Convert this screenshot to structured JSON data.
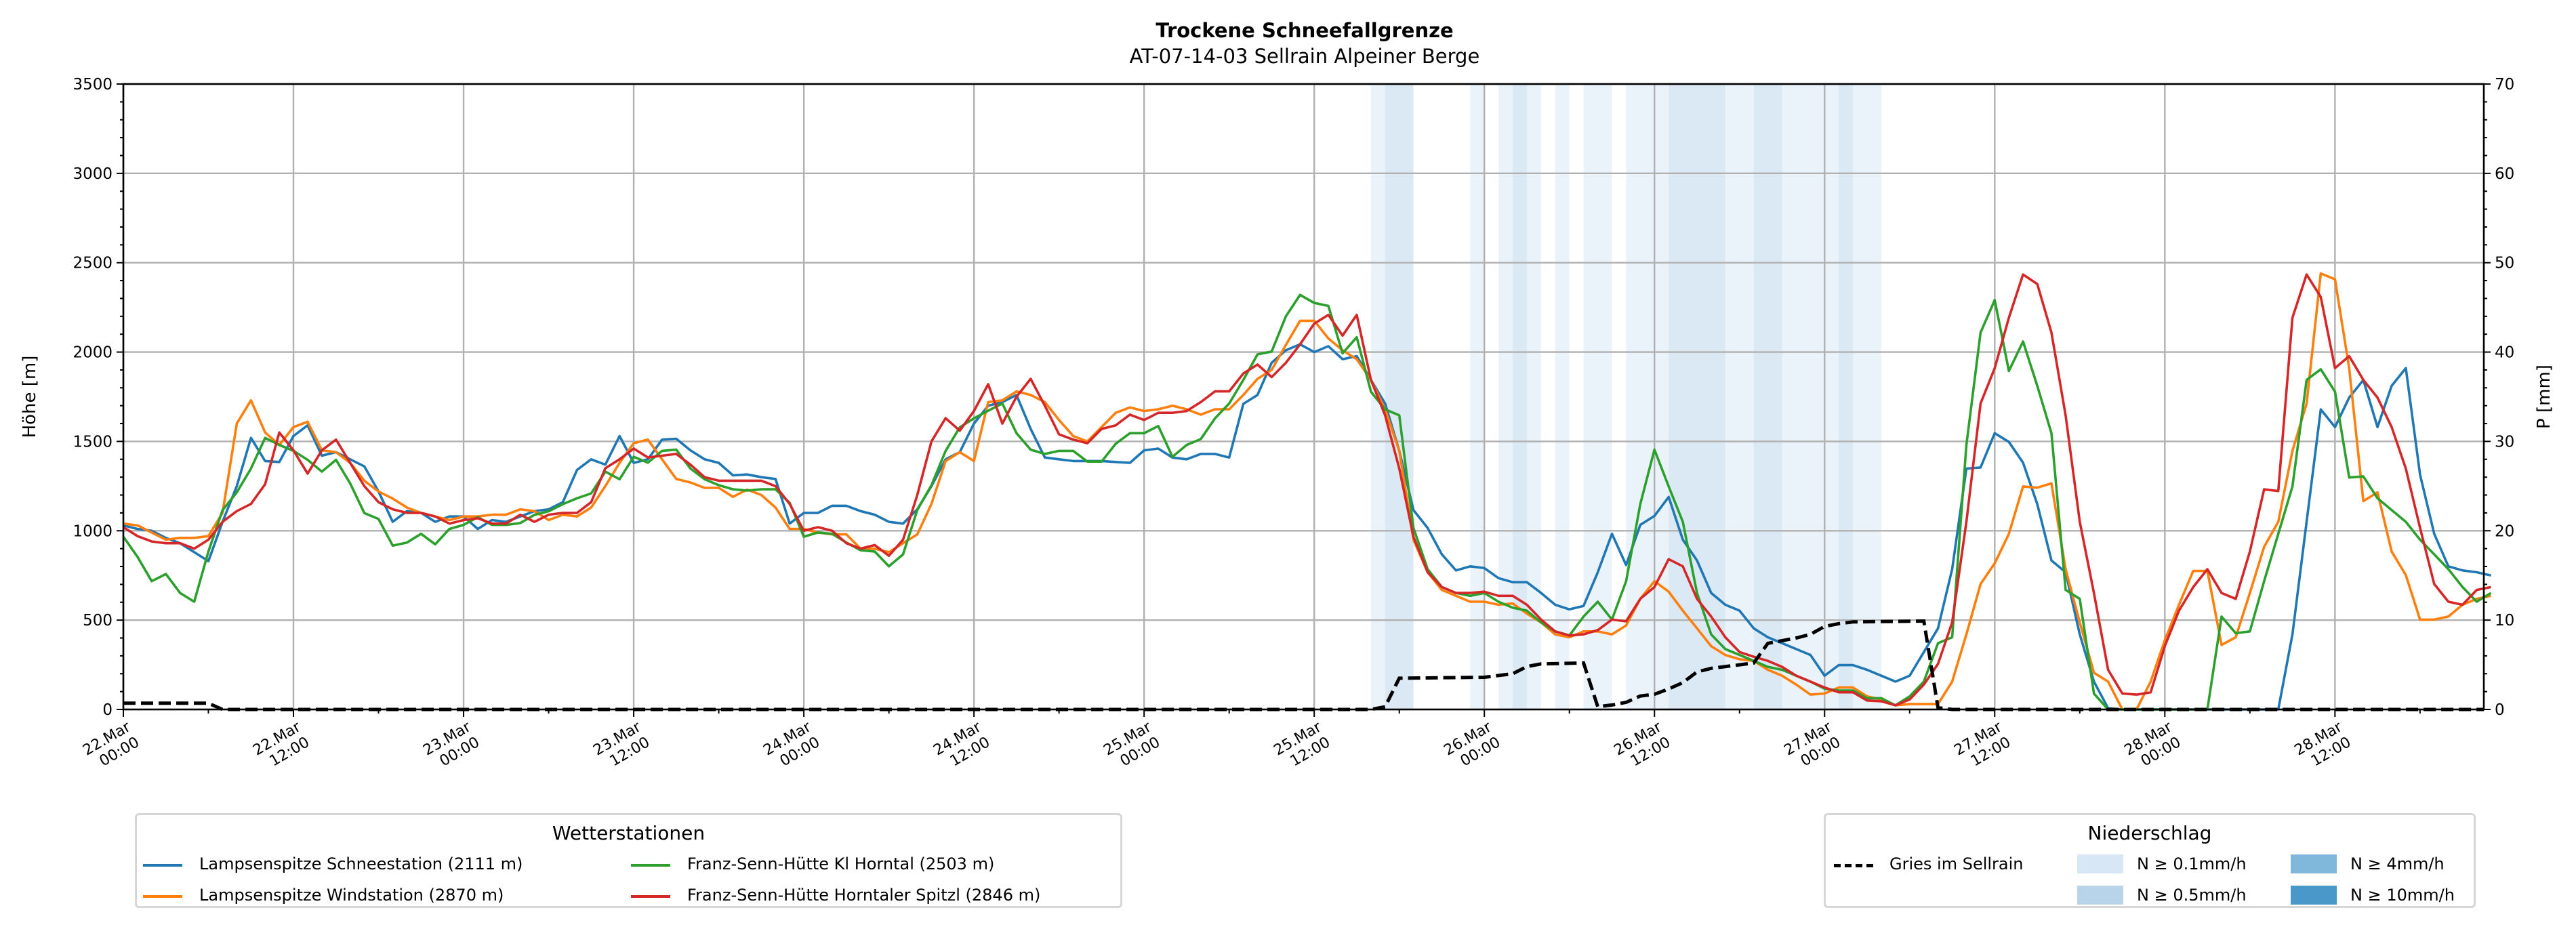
{
  "title": "Trockene Schneefallgrenze",
  "subtitle": "AT-07-14-03 Sellrain Alpeiner Berge",
  "chart_data": {
    "type": "line",
    "title": "Trockene Schneefallgrenze",
    "subtitle": "AT-07-14-03 Sellrain Alpeiner Berge",
    "x_start": "22.Mar 00:00",
    "x_step_hours": 1,
    "xlim_hours": [
      0,
      166.5
    ],
    "xticks": [
      "22.Mar\n00:00",
      "22.Mar\n12:00",
      "23.Mar\n00:00",
      "23.Mar\n12:00",
      "24.Mar\n00:00",
      "24.Mar\n12:00",
      "25.Mar\n00:00",
      "25.Mar\n12:00",
      "26.Mar\n00:00",
      "26.Mar\n12:00",
      "27.Mar\n00:00",
      "27.Mar\n12:00",
      "28.Mar\n00:00",
      "28.Mar\n12:00"
    ],
    "ylabel": "Höhe [m]",
    "ylim": [
      0,
      3500
    ],
    "yticks": [
      0,
      500,
      1000,
      1500,
      2000,
      2500,
      3000,
      3500
    ],
    "y2label": "P [mm]",
    "y2lim": [
      0,
      70
    ],
    "y2ticks": [
      0,
      10,
      20,
      30,
      40,
      50,
      60,
      70
    ],
    "grid": true,
    "series": [
      {
        "name": "Lampsenspitze Schneestation (2111 m)",
        "color": "#1f77b4",
        "values": [
          1030,
          1010,
          1000,
          960,
          930,
          880,
          830,
          1050,
          1250,
          1520,
          1390,
          1385,
          1530,
          1590,
          1420,
          1440,
          1400,
          1360,
          1220,
          1050,
          1110,
          1100,
          1050,
          1080,
          1080,
          1010,
          1060,
          1050,
          1080,
          1110,
          1120,
          1160,
          1340,
          1400,
          1370,
          1530,
          1380,
          1400,
          1510,
          1515,
          1450,
          1400,
          1380,
          1310,
          1315,
          1300,
          1290,
          1040,
          1100,
          1100,
          1140,
          1140,
          1110,
          1090,
          1050,
          1040,
          1120,
          1250,
          1400,
          1440,
          1600,
          1700,
          1720,
          1760,
          1570,
          1410,
          1400,
          1390,
          1390,
          1390,
          1385,
          1380,
          1450,
          1460,
          1410,
          1400,
          1430,
          1430,
          1410,
          1710,
          1760,
          1940,
          2010,
          2043,
          2000,
          2033,
          1960,
          1977,
          1844,
          1712,
          1447,
          1116,
          1016,
          868,
          778,
          801,
          791,
          735,
          712,
          712,
          652,
          586,
          560,
          579,
          768,
          983,
          808,
          1033,
          1083,
          1189,
          950,
          834,
          652,
          586,
          553,
          454,
          404,
          371,
          338,
          305,
          189,
          248,
          248,
          222,
          189,
          156,
          189,
          321,
          454,
          785,
          1348,
          1354,
          1546,
          1497,
          1381,
          1149,
          834,
          768,
          420,
          156,
          7,
          0,
          0,
          0,
          0,
          0,
          0,
          0,
          0,
          0,
          0,
          0,
          0,
          420,
          1050,
          1679,
          1580,
          1745,
          1844,
          1580,
          1811,
          1910,
          1314,
          983,
          801,
          778,
          768,
          750
        ]
      },
      {
        "name": "Lampsenspitze Windstation (2870 m)",
        "color": "#ff7f0e",
        "values": [
          1040,
          1030,
          990,
          950,
          960,
          960,
          970,
          1100,
          1600,
          1730,
          1550,
          1480,
          1580,
          1610,
          1450,
          1440,
          1380,
          1280,
          1220,
          1180,
          1130,
          1100,
          1080,
          1060,
          1080,
          1080,
          1090,
          1090,
          1120,
          1110,
          1060,
          1090,
          1080,
          1130,
          1250,
          1380,
          1490,
          1510,
          1400,
          1290,
          1270,
          1240,
          1240,
          1190,
          1230,
          1200,
          1130,
          1010,
          1010,
          990,
          980,
          980,
          900,
          900,
          880,
          930,
          980,
          1150,
          1390,
          1440,
          1390,
          1720,
          1730,
          1780,
          1760,
          1720,
          1620,
          1530,
          1500,
          1580,
          1660,
          1690,
          1670,
          1680,
          1700,
          1680,
          1650,
          1680,
          1680,
          1760,
          1850,
          1900,
          2040,
          2175,
          2175,
          2076,
          2010,
          1960,
          1844,
          1679,
          1447,
          950,
          768,
          669,
          636,
          603,
          603,
          586,
          593,
          536,
          487,
          420,
          404,
          437,
          437,
          420,
          470,
          619,
          718,
          659,
          553,
          454,
          354,
          305,
          281,
          272,
          222,
          189,
          139,
          83,
          89,
          123,
          123,
          73,
          56,
          23,
          30,
          30,
          30,
          156,
          420,
          702,
          818,
          983,
          1248,
          1241,
          1265,
          785,
          487,
          205,
          156,
          0,
          0,
          156,
          387,
          586,
          775,
          775,
          361,
          404,
          652,
          910,
          1050,
          1447,
          1712,
          2440,
          2407,
          1910,
          1166,
          1215,
          884,
          752,
          503,
          503,
          520,
          586,
          619,
          636
        ]
      },
      {
        "name": "Franz-Senn-Hütte Kl Horntal (2503 m)",
        "color": "#2ca02c",
        "values": [
          967,
          854,
          718,
          758,
          652,
          603,
          884,
          1116,
          1215,
          1348,
          1520,
          1480,
          1447,
          1397,
          1331,
          1397,
          1265,
          1099,
          1066,
          917,
          934,
          983,
          924,
          1010,
          1033,
          1076,
          1033,
          1033,
          1043,
          1089,
          1109,
          1149,
          1182,
          1209,
          1331,
          1288,
          1414,
          1381,
          1447,
          1454,
          1348,
          1288,
          1255,
          1232,
          1225,
          1232,
          1232,
          1156,
          967,
          990,
          983,
          934,
          891,
          884,
          801,
          868,
          1116,
          1255,
          1447,
          1579,
          1629,
          1672,
          1712,
          1546,
          1454,
          1430,
          1447,
          1447,
          1387,
          1387,
          1487,
          1546,
          1546,
          1586,
          1414,
          1480,
          1513,
          1629,
          1712,
          1844,
          1987,
          2003,
          2200,
          2320,
          2275,
          2258,
          1993,
          2083,
          1778,
          1679,
          1646,
          1016,
          785,
          685,
          652,
          636,
          652,
          603,
          569,
          553,
          487,
          437,
          414,
          520,
          603,
          503,
          718,
          1149,
          1454,
          1248,
          1050,
          652,
          420,
          338,
          305,
          272,
          238,
          222,
          189,
          156,
          116,
          106,
          106,
          63,
          63,
          23,
          73,
          156,
          371,
          404,
          1480,
          2109,
          2291,
          1894,
          2059,
          1811,
          1546,
          669,
          619,
          89,
          0,
          0,
          0,
          0,
          0,
          0,
          0,
          0,
          520,
          427,
          437,
          718,
          983,
          1248,
          1844,
          1904,
          1778,
          1298,
          1304,
          1182,
          1116,
          1050,
          950,
          868,
          785,
          685,
          603,
          652
        ]
      },
      {
        "name": "Franz-Senn-Hütte Horntaler Spitzl (2846 m)",
        "color": "#d62728",
        "values": [
          1020,
          970,
          940,
          930,
          930,
          900,
          950,
          1050,
          1110,
          1150,
          1260,
          1550,
          1450,
          1320,
          1450,
          1510,
          1380,
          1250,
          1160,
          1120,
          1100,
          1100,
          1080,
          1040,
          1060,
          1070,
          1040,
          1040,
          1090,
          1050,
          1090,
          1100,
          1100,
          1160,
          1350,
          1400,
          1460,
          1410,
          1420,
          1430,
          1370,
          1300,
          1280,
          1280,
          1280,
          1280,
          1250,
          1150,
          1000,
          1020,
          1000,
          930,
          900,
          920,
          860,
          950,
          1200,
          1500,
          1630,
          1560,
          1670,
          1820,
          1600,
          1750,
          1850,
          1700,
          1540,
          1510,
          1490,
          1570,
          1590,
          1650,
          1620,
          1660,
          1660,
          1670,
          1720,
          1780,
          1780,
          1880,
          1930,
          1860,
          1940,
          2043,
          2159,
          2208,
          2092,
          2208,
          1844,
          1646,
          1348,
          967,
          768,
          685,
          652,
          652,
          659,
          636,
          636,
          586,
          503,
          437,
          414,
          420,
          444,
          503,
          493,
          619,
          685,
          841,
          801,
          619,
          520,
          404,
          321,
          295,
          272,
          238,
          189,
          156,
          123,
          96,
          96,
          50,
          46,
          23,
          56,
          139,
          255,
          487,
          1050,
          1712,
          1910,
          2192,
          2434,
          2381,
          2109,
          1646,
          1050,
          652,
          222,
          89,
          83,
          96,
          354,
          553,
          685,
          785,
          652,
          619,
          884,
          1232,
          1222,
          2192,
          2434,
          2308,
          1910,
          1977,
          1844,
          1745,
          1580,
          1348,
          1016,
          702,
          603,
          586,
          669,
          685
        ]
      }
    ],
    "precip_station": {
      "name": "Gries im Sellrain",
      "color": "#000000",
      "axis": "P [mm]",
      "points": [
        [
          0,
          0.7
        ],
        [
          6,
          0.7
        ],
        [
          7,
          0
        ],
        [
          88,
          0
        ],
        [
          89,
          0.3
        ],
        [
          90,
          3.5
        ],
        [
          96,
          3.6
        ],
        [
          97,
          3.8
        ],
        [
          98,
          4.0
        ],
        [
          99,
          4.8
        ],
        [
          100,
          5.1
        ],
        [
          103,
          5.2
        ],
        [
          104,
          0.3
        ],
        [
          105,
          0.5
        ],
        [
          106,
          0.8
        ],
        [
          107,
          1.5
        ],
        [
          108,
          1.7
        ],
        [
          109,
          2.3
        ],
        [
          110,
          3.0
        ],
        [
          111,
          4.2
        ],
        [
          112,
          4.6
        ],
        [
          114,
          5.0
        ],
        [
          115,
          5.2
        ],
        [
          116,
          7.4
        ],
        [
          117,
          7.7
        ],
        [
          118,
          8.0
        ],
        [
          119,
          8.4
        ],
        [
          120,
          9.3
        ],
        [
          121,
          9.6
        ],
        [
          122,
          9.8
        ],
        [
          127,
          9.9
        ],
        [
          128,
          0.2
        ],
        [
          129,
          0
        ],
        [
          166.5,
          0
        ]
      ]
    },
    "precip_bands": [
      [
        88,
        89,
        "0.1"
      ],
      [
        89,
        91,
        "0.5"
      ],
      [
        95,
        96,
        "0.1"
      ],
      [
        97,
        98,
        "0.1"
      ],
      [
        98,
        99,
        "0.5"
      ],
      [
        99,
        100,
        "0.1"
      ],
      [
        101,
        102,
        "0.1"
      ],
      [
        103,
        105,
        "0.1"
      ],
      [
        106,
        109,
        "0.1"
      ],
      [
        109,
        113,
        "0.5"
      ],
      [
        113,
        115,
        "0.1"
      ],
      [
        115,
        117,
        "0.5"
      ],
      [
        117,
        121,
        "0.1"
      ],
      [
        121,
        122,
        "0.5"
      ],
      [
        122,
        124,
        "0.1"
      ]
    ],
    "legend_stations": {
      "title": "Wetterstationen",
      "placement": "bottom-left"
    },
    "legend_precip": {
      "title": "Niederschlag",
      "placement": "bottom-right",
      "line_label": "Gries im Sellrain",
      "levels": [
        {
          "key": "0.1",
          "label": "N ≥ 0.1mm/h",
          "color": "#d8e7f5"
        },
        {
          "key": "0.5",
          "label": "N ≥ 0.5mm/h",
          "color": "#b8d4ea"
        },
        {
          "key": "4",
          "label": "N ≥ 4mm/h",
          "color": "#80b8db"
        },
        {
          "key": "10",
          "label": "N ≥ 10mm/h",
          "color": "#4a97c9"
        }
      ]
    }
  }
}
